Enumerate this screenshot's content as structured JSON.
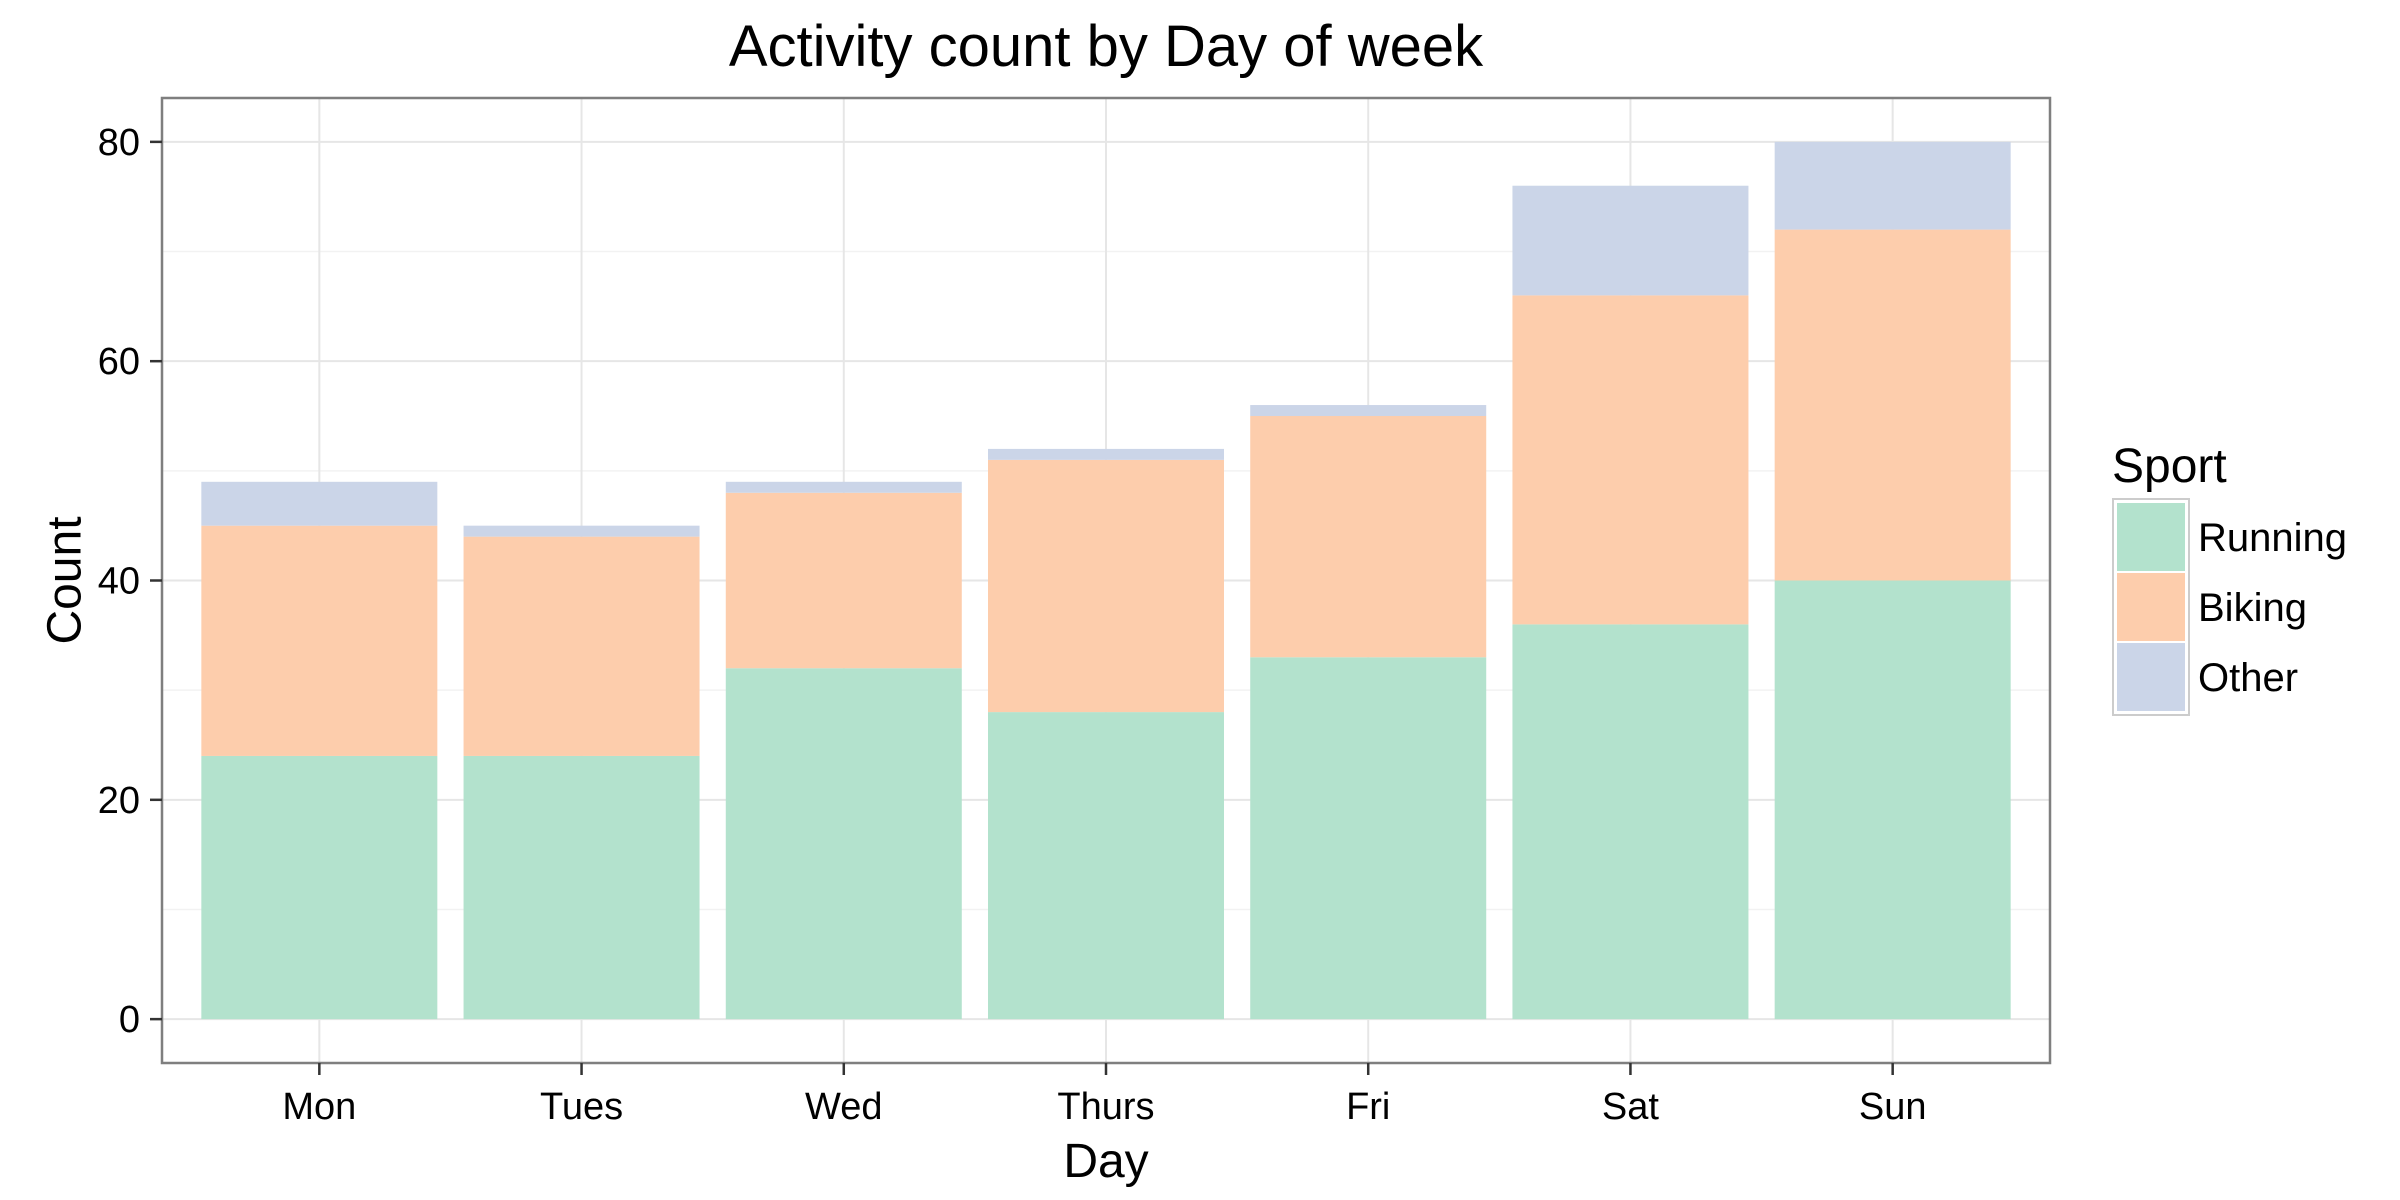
{
  "chart_data": {
    "type": "bar",
    "stacked": true,
    "title": "Activity count by Day of week",
    "xlabel": "Day",
    "ylabel": "Count",
    "categories": [
      "Mon",
      "Tues",
      "Wed",
      "Thurs",
      "Fri",
      "Sat",
      "Sun"
    ],
    "series": [
      {
        "name": "Running",
        "color": "#b3e2cd",
        "values": [
          24,
          24,
          32,
          28,
          33,
          36,
          40
        ]
      },
      {
        "name": "Biking",
        "color": "#fdcdac",
        "values": [
          21,
          20,
          16,
          23,
          22,
          30,
          32
        ]
      },
      {
        "name": "Other",
        "color": "#cbd5e8",
        "values": [
          4,
          1,
          1,
          1,
          1,
          10,
          8
        ]
      }
    ],
    "ylim": [
      -4,
      84
    ],
    "yticks": [
      0,
      20,
      40,
      60,
      80
    ],
    "ytick_labels": [
      "0",
      "20",
      "40",
      "60",
      "80"
    ],
    "grid": true,
    "legend": {
      "title": "Sport",
      "position": "right"
    }
  }
}
